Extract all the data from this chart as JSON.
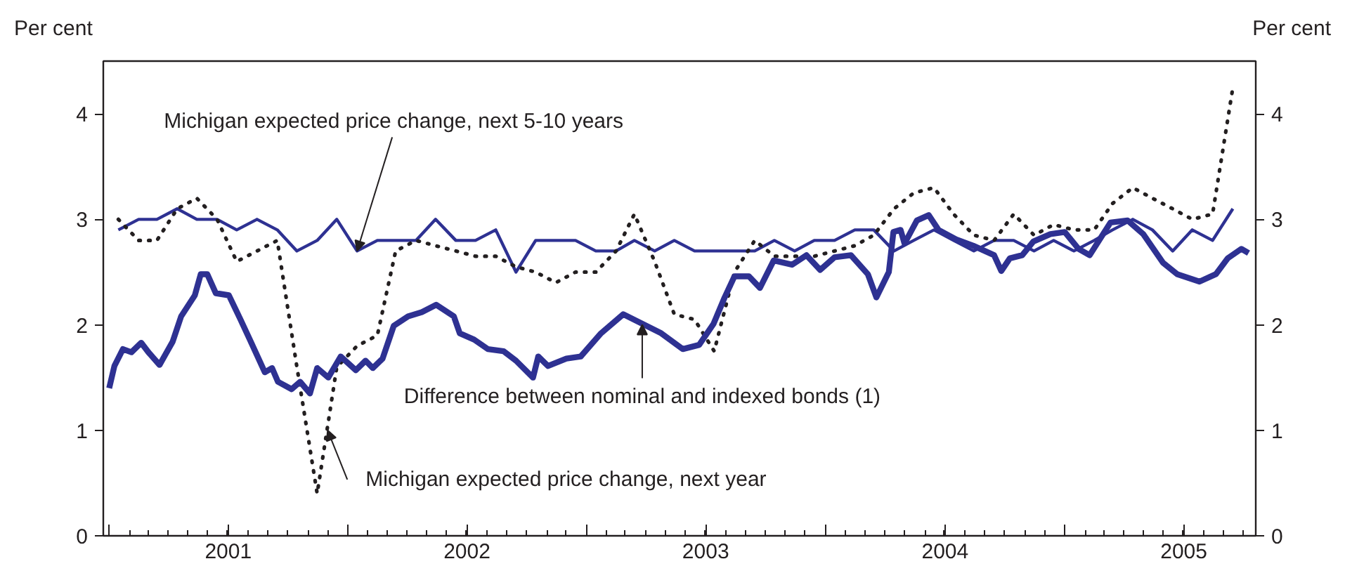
{
  "chart_data": {
    "type": "line",
    "ylabel": "Per cent",
    "y2label": "Per cent",
    "xlim": [
      "2000-12-23",
      "2005-10-20"
    ],
    "ylim": [
      0,
      4.5
    ],
    "y2lim": [
      0,
      4.5
    ],
    "yticks": [
      0,
      1,
      2,
      3,
      4
    ],
    "y2ticks": [
      0,
      1,
      2,
      3,
      4
    ],
    "xticks": [
      {
        "value": "2001-01-01",
        "label": null
      },
      {
        "value": "2001-07-02",
        "label": "2001"
      },
      {
        "value": "2002-01-01",
        "label": null
      },
      {
        "value": "2002-07-02",
        "label": "2002"
      },
      {
        "value": "2003-01-01",
        "label": null
      },
      {
        "value": "2003-07-02",
        "label": "2003"
      },
      {
        "value": "2004-01-01",
        "label": null
      },
      {
        "value": "2004-07-02",
        "label": "2004"
      },
      {
        "value": "2005-01-01",
        "label": null
      },
      {
        "value": "2005-07-02",
        "label": "2005"
      }
    ],
    "x": [
      "2001-01-15",
      "2001-02-15",
      "2001-03-15",
      "2001-04-15",
      "2001-05-15",
      "2001-06-15",
      "2001-07-15",
      "2001-08-15",
      "2001-09-15",
      "2001-10-15",
      "2001-11-15",
      "2001-12-15",
      "2002-01-15",
      "2002-02-15",
      "2002-03-15",
      "2002-04-15",
      "2002-05-15",
      "2002-06-15",
      "2002-07-15",
      "2002-08-15",
      "2002-09-15",
      "2002-10-15",
      "2002-11-15",
      "2002-12-15",
      "2003-01-15",
      "2003-02-15",
      "2003-03-15",
      "2003-04-15",
      "2003-05-15",
      "2003-06-15",
      "2003-07-15",
      "2003-08-15",
      "2003-09-15",
      "2003-10-15",
      "2003-11-15",
      "2003-12-15",
      "2004-01-15",
      "2004-02-15",
      "2004-03-15",
      "2004-04-15",
      "2004-05-15",
      "2004-06-15",
      "2004-07-15",
      "2004-08-15",
      "2004-09-15",
      "2004-10-15",
      "2004-11-15",
      "2004-12-15",
      "2005-01-15",
      "2005-02-15",
      "2005-03-15",
      "2005-04-15",
      "2005-05-15",
      "2005-06-15",
      "2005-07-15",
      "2005-08-15",
      "2005-09-15"
    ],
    "series": [
      {
        "color": "#2e3192",
        "values": [
          2.9,
          3.0,
          3.0,
          3.1,
          3.0,
          3.0,
          2.9,
          3.0,
          2.9,
          2.7,
          2.8,
          3.0,
          2.7,
          2.8,
          2.8,
          2.8,
          3.0,
          2.8,
          2.8,
          2.9,
          2.5,
          2.8,
          2.8,
          2.8,
          2.7,
          2.7,
          2.8,
          2.7,
          2.8,
          2.7,
          2.7,
          2.7,
          2.7,
          2.8,
          2.7,
          2.8,
          2.8,
          2.9,
          2.9,
          2.7,
          2.8,
          2.9,
          2.8,
          2.7,
          2.8,
          2.8,
          2.7,
          2.8,
          2.7,
          2.8,
          2.9,
          3.0,
          2.9,
          2.7,
          2.9,
          2.8,
          3.1
        ]
      },
      {
        "color": "#231f20",
        "line_style": "dotted",
        "values": [
          3.0,
          2.8,
          2.8,
          3.1,
          3.2,
          3.0,
          2.6,
          2.7,
          2.8,
          1.6,
          0.4,
          1.6,
          1.8,
          1.9,
          2.7,
          2.8,
          2.75,
          2.7,
          2.65,
          2.65,
          2.55,
          2.5,
          2.4,
          2.5,
          2.5,
          2.7,
          3.05,
          2.6,
          2.1,
          2.05,
          1.75,
          2.5,
          2.8,
          2.65,
          2.65,
          2.65,
          2.7,
          2.75,
          2.85,
          3.1,
          3.25,
          3.3,
          3.05,
          2.85,
          2.8,
          3.05,
          2.85,
          2.95,
          2.9,
          2.9,
          3.15,
          3.3,
          3.2,
          3.1,
          3.0,
          3.05,
          4.25
        ]
      },
      {
        "color": "#2e3192",
        "x": [
          "2001-01-01",
          "2001-01-09",
          "2001-01-22",
          "2001-02-04",
          "2001-02-19",
          "2001-03-02",
          "2001-03-19",
          "2001-04-08",
          "2001-04-21",
          "2001-05-12",
          "2001-05-21",
          "2001-05-31",
          "2001-06-13",
          "2001-07-03",
          "2001-07-20",
          "2001-08-04",
          "2001-08-27",
          "2001-09-07",
          "2001-09-16",
          "2001-10-07",
          "2001-10-20",
          "2001-11-04",
          "2001-11-15",
          "2001-12-02",
          "2001-12-21",
          "2002-01-13",
          "2002-01-28",
          "2002-02-08",
          "2002-02-23",
          "2002-03-12",
          "2002-04-03",
          "2002-04-24",
          "2002-05-16",
          "2002-06-12",
          "2002-06-21",
          "2002-07-13",
          "2002-08-03",
          "2002-08-27",
          "2002-09-15",
          "2002-10-11",
          "2002-10-19",
          "2002-11-03",
          "2002-12-01",
          "2002-12-23",
          "2003-01-23",
          "2003-02-26",
          "2003-03-27",
          "2003-04-25",
          "2003-05-28",
          "2003-06-22",
          "2003-07-14",
          "2003-07-31",
          "2003-08-15",
          "2003-09-06",
          "2003-09-23",
          "2003-10-14",
          "2003-11-11",
          "2003-12-03",
          "2003-12-24",
          "2004-01-15",
          "2004-02-09",
          "2004-03-06",
          "2004-03-19",
          "2004-04-07",
          "2004-04-14",
          "2004-04-25",
          "2004-05-01",
          "2004-05-20",
          "2004-06-07",
          "2004-06-22",
          "2004-07-19",
          "2004-08-14",
          "2004-09-15",
          "2004-09-26",
          "2004-10-09",
          "2004-10-28",
          "2004-11-14",
          "2004-12-10",
          "2005-01-01",
          "2005-01-22",
          "2005-02-08",
          "2005-03-12",
          "2005-04-07",
          "2005-05-01",
          "2005-05-31",
          "2005-06-22",
          "2005-07-26",
          "2005-08-20",
          "2005-09-07",
          "2005-09-28",
          "2005-10-09"
        ],
        "values": [
          1.4,
          1.61,
          1.77,
          1.74,
          1.83,
          1.74,
          1.62,
          1.84,
          2.08,
          2.28,
          2.48,
          2.48,
          2.3,
          2.28,
          2.06,
          1.86,
          1.55,
          1.59,
          1.46,
          1.39,
          1.46,
          1.35,
          1.59,
          1.5,
          1.7,
          1.57,
          1.66,
          1.59,
          1.68,
          1.99,
          2.08,
          2.12,
          2.19,
          2.08,
          1.92,
          1.86,
          1.77,
          1.75,
          1.66,
          1.5,
          1.7,
          1.61,
          1.68,
          1.7,
          1.92,
          2.1,
          2.01,
          1.92,
          1.77,
          1.81,
          2.01,
          2.26,
          2.46,
          2.46,
          2.35,
          2.61,
          2.57,
          2.66,
          2.52,
          2.64,
          2.66,
          2.48,
          2.26,
          2.5,
          2.88,
          2.9,
          2.77,
          2.99,
          3.04,
          2.9,
          2.81,
          2.75,
          2.66,
          2.51,
          2.63,
          2.66,
          2.79,
          2.86,
          2.88,
          2.72,
          2.66,
          2.97,
          2.99,
          2.86,
          2.59,
          2.48,
          2.41,
          2.48,
          2.63,
          2.72,
          2.68
        ]
      }
    ],
    "annotations": [
      {
        "text": "Michigan expected price change, next 5-10 years",
        "x": "2002-01-15",
        "y": 2.7
      },
      {
        "text": "Difference between nominal and indexed bonds (1)",
        "x": "2003-03-27",
        "y": 2.0
      },
      {
        "text": "Michigan expected price change, next year",
        "x": "2001-12-01",
        "y": 1.0
      }
    ]
  }
}
